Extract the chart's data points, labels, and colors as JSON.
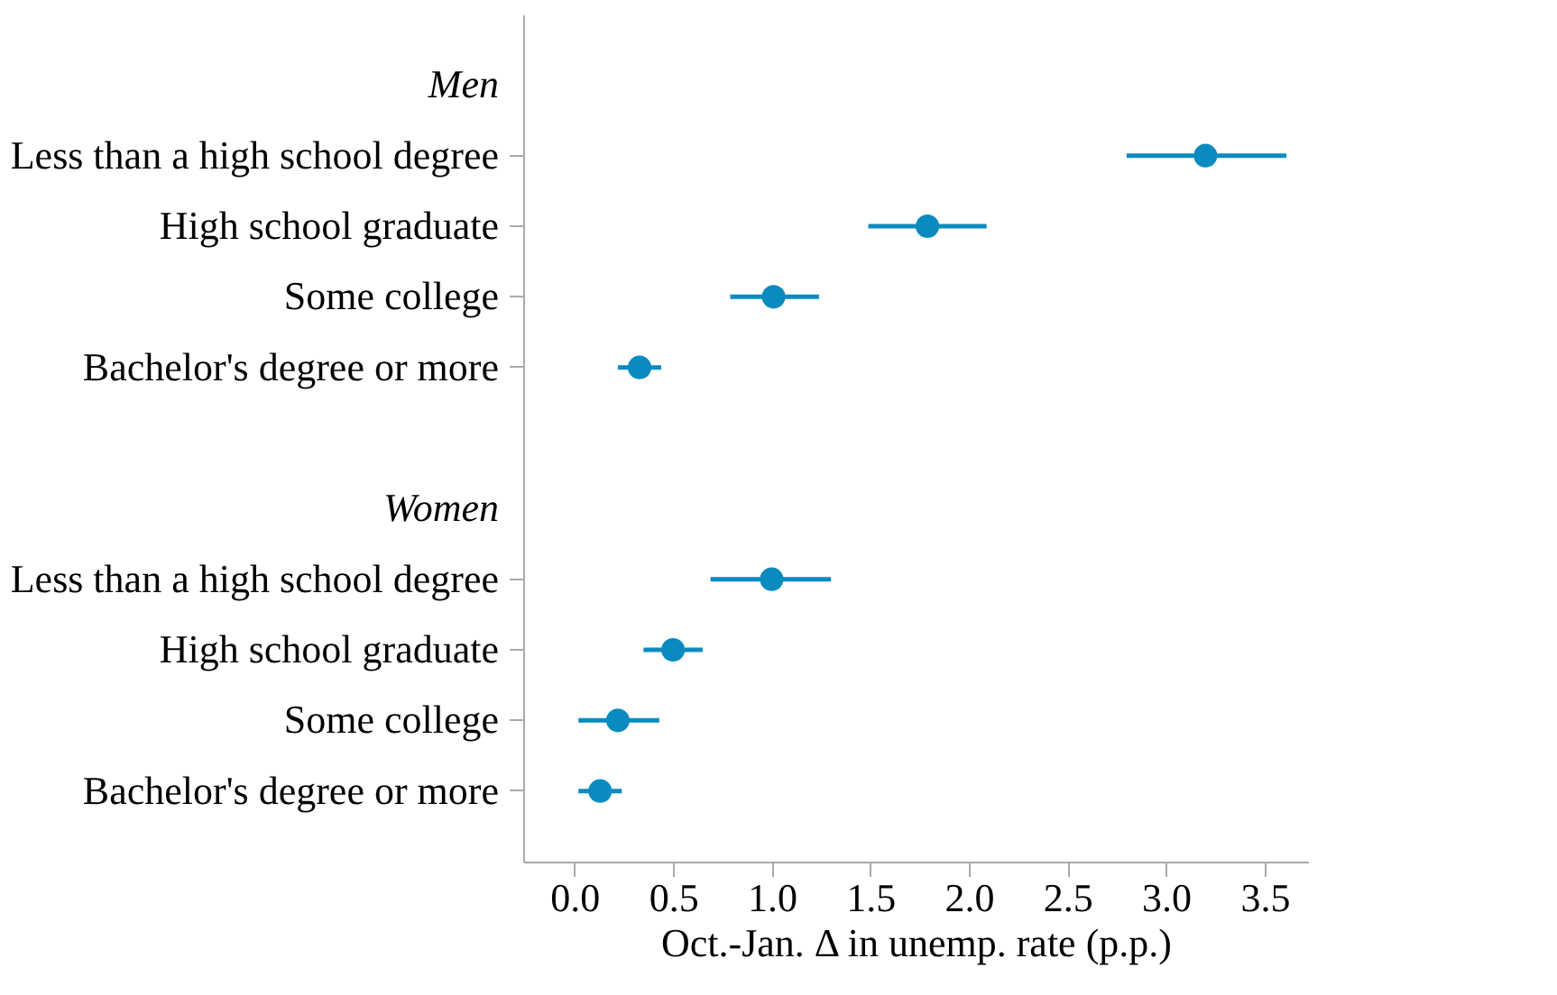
{
  "chart_data": {
    "type": "scatter",
    "orientation": "horizontal",
    "xlabel": "Oct.-Jan. Δ in unemp. rate (p.p.)",
    "categories": [
      "Men",
      "Less than a high school degree",
      "High school graduate",
      "Some college",
      "Bachelor's degree or more",
      null,
      "Women",
      "Less than a high school degree",
      "High school graduate",
      "Some college",
      "Bachelor's degree or more"
    ],
    "series": [
      {
        "color": "#0a8bbf",
        "values": [
          null,
          3.2,
          1.79,
          1.01,
          0.33,
          null,
          null,
          1.0,
          0.5,
          0.22,
          0.13
        ],
        "errors": [
          null,
          [
            2.8,
            3.61
          ],
          [
            1.49,
            2.09
          ],
          [
            0.79,
            1.24
          ],
          [
            0.22,
            0.44
          ],
          null,
          null,
          [
            0.69,
            1.3
          ],
          [
            0.35,
            0.65
          ],
          [
            0.02,
            0.43
          ],
          [
            0.02,
            0.24
          ]
        ]
      }
    ],
    "xlim": [
      -0.26,
      3.72
    ],
    "xticks": [
      {
        "value": 0,
        "label": "0.0"
      },
      0.5,
      {
        "value": 1,
        "label": "1.0"
      },
      1.5,
      {
        "value": 2,
        "label": "2.0"
      },
      2.5,
      {
        "value": 3,
        "label": "3.0"
      },
      3.5
    ],
    "marker": "circle",
    "grid": false
  }
}
